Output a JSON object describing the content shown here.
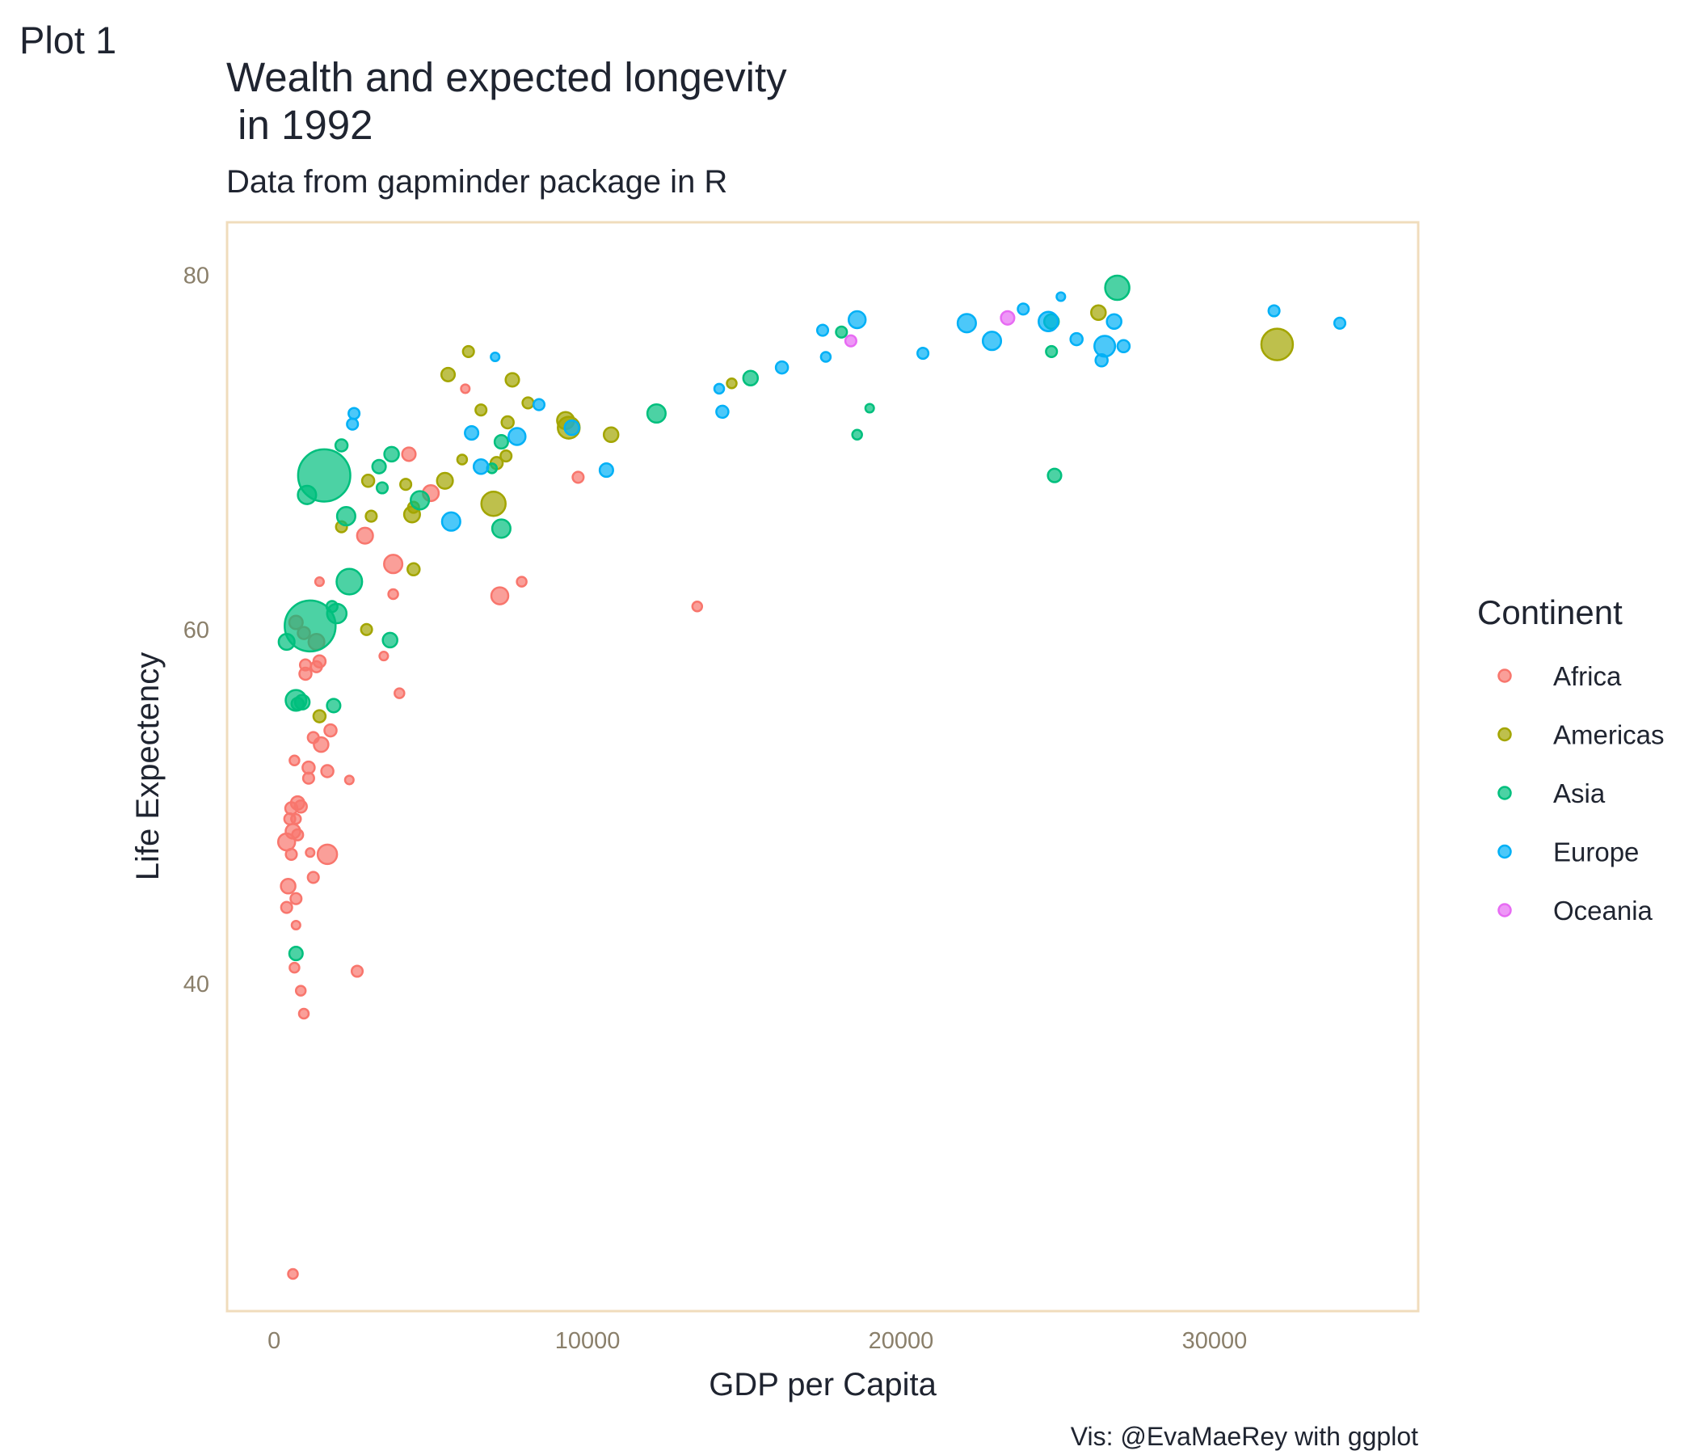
{
  "plot_tag": "Plot 1",
  "caption": "Vis: @EvaMaeRey with ggplot",
  "colors": {
    "Africa": "#F8766D",
    "Americas": "#A3A500",
    "Asia": "#00BF7D",
    "Europe": "#00B0F6",
    "Oceania": "#E76BF3",
    "panel_border": "#f0dcbc",
    "tick_text": "#8a7f6a"
  },
  "chart_data": {
    "type": "scatter",
    "title_lines": [
      "Wealth and expected longevity",
      " in 1992"
    ],
    "subtitle": "Data from gapminder package in R",
    "xlabel": "GDP per Capita",
    "ylabel": "Life Expectency",
    "xlim": [
      -1500,
      36500
    ],
    "ylim": [
      21.5,
      83
    ],
    "x_ticks": [
      0,
      10000,
      20000,
      30000
    ],
    "y_ticks": [
      40,
      60,
      80
    ],
    "grid": false,
    "legend": {
      "title": "Continent",
      "placement": "right",
      "entries": [
        "Africa",
        "Americas",
        "Asia",
        "Europe",
        "Oceania"
      ]
    },
    "series": [
      {
        "name": "Africa",
        "points": [
          {
            "x": 600,
            "y": 23.6,
            "s": 0.8
          },
          {
            "x": 950,
            "y": 38.3,
            "s": 0.8
          },
          {
            "x": 850,
            "y": 39.6,
            "s": 0.8
          },
          {
            "x": 2650,
            "y": 40.7,
            "s": 0.9
          },
          {
            "x": 650,
            "y": 40.9,
            "s": 0.8
          },
          {
            "x": 1250,
            "y": 46.0,
            "s": 0.9
          },
          {
            "x": 700,
            "y": 43.3,
            "s": 0.7
          },
          {
            "x": 400,
            "y": 44.3,
            "s": 0.9
          },
          {
            "x": 450,
            "y": 45.5,
            "s": 1.2
          },
          {
            "x": 700,
            "y": 44.8,
            "s": 0.9
          },
          {
            "x": 550,
            "y": 47.3,
            "s": 0.9
          },
          {
            "x": 400,
            "y": 48.0,
            "s": 1.4
          },
          {
            "x": 1700,
            "y": 47.3,
            "s": 1.6
          },
          {
            "x": 1150,
            "y": 47.4,
            "s": 0.7
          },
          {
            "x": 600,
            "y": 48.6,
            "s": 1.2
          },
          {
            "x": 750,
            "y": 48.4,
            "s": 0.9
          },
          {
            "x": 700,
            "y": 49.3,
            "s": 0.8
          },
          {
            "x": 500,
            "y": 49.3,
            "s": 0.9
          },
          {
            "x": 550,
            "y": 49.9,
            "s": 1.0
          },
          {
            "x": 850,
            "y": 50.0,
            "s": 1.0
          },
          {
            "x": 750,
            "y": 50.2,
            "s": 1.1
          },
          {
            "x": 1100,
            "y": 51.6,
            "s": 0.9
          },
          {
            "x": 2400,
            "y": 51.5,
            "s": 0.7
          },
          {
            "x": 1100,
            "y": 52.2,
            "s": 1.0
          },
          {
            "x": 1700,
            "y": 52.0,
            "s": 1.0
          },
          {
            "x": 650,
            "y": 52.6,
            "s": 0.8
          },
          {
            "x": 1500,
            "y": 53.5,
            "s": 1.2
          },
          {
            "x": 1250,
            "y": 53.9,
            "s": 0.9
          },
          {
            "x": 1800,
            "y": 54.3,
            "s": 1.0
          },
          {
            "x": 4000,
            "y": 56.4,
            "s": 0.8
          },
          {
            "x": 1000,
            "y": 57.5,
            "s": 1.0
          },
          {
            "x": 1000,
            "y": 58.0,
            "s": 0.9
          },
          {
            "x": 1350,
            "y": 57.9,
            "s": 0.9
          },
          {
            "x": 1450,
            "y": 58.2,
            "s": 1.0
          },
          {
            "x": 3500,
            "y": 58.5,
            "s": 0.7
          },
          {
            "x": 1350,
            "y": 59.3,
            "s": 1.3
          },
          {
            "x": 950,
            "y": 59.8,
            "s": 1.0
          },
          {
            "x": 700,
            "y": 60.4,
            "s": 1.1
          },
          {
            "x": 13500,
            "y": 61.3,
            "s": 0.8
          },
          {
            "x": 3800,
            "y": 62.0,
            "s": 0.8
          },
          {
            "x": 7200,
            "y": 61.9,
            "s": 1.4
          },
          {
            "x": 1450,
            "y": 62.7,
            "s": 0.7
          },
          {
            "x": 7900,
            "y": 62.7,
            "s": 0.8
          },
          {
            "x": 3800,
            "y": 63.7,
            "s": 1.5
          },
          {
            "x": 2900,
            "y": 65.3,
            "s": 1.3
          },
          {
            "x": 5000,
            "y": 67.7,
            "s": 1.3
          },
          {
            "x": 9700,
            "y": 68.6,
            "s": 0.9
          },
          {
            "x": 4300,
            "y": 69.9,
            "s": 1.1
          },
          {
            "x": 6100,
            "y": 73.6,
            "s": 0.7
          }
        ]
      },
      {
        "name": "Americas",
        "points": [
          {
            "x": 1450,
            "y": 55.1,
            "s": 1.0
          },
          {
            "x": 2950,
            "y": 60.0,
            "s": 0.9
          },
          {
            "x": 4450,
            "y": 63.4,
            "s": 1.0
          },
          {
            "x": 2150,
            "y": 65.8,
            "s": 0.9
          },
          {
            "x": 3100,
            "y": 66.4,
            "s": 0.9
          },
          {
            "x": 4400,
            "y": 66.5,
            "s": 1.3
          },
          {
            "x": 4450,
            "y": 66.9,
            "s": 0.9
          },
          {
            "x": 7000,
            "y": 67.1,
            "s": 2.0
          },
          {
            "x": 4200,
            "y": 68.2,
            "s": 0.9
          },
          {
            "x": 3000,
            "y": 68.4,
            "s": 1.0
          },
          {
            "x": 5450,
            "y": 68.4,
            "s": 1.3
          },
          {
            "x": 6000,
            "y": 69.6,
            "s": 0.8
          },
          {
            "x": 7100,
            "y": 69.4,
            "s": 1.0
          },
          {
            "x": 7400,
            "y": 69.8,
            "s": 0.9
          },
          {
            "x": 10750,
            "y": 71.0,
            "s": 1.2
          },
          {
            "x": 7450,
            "y": 71.7,
            "s": 1.0
          },
          {
            "x": 9300,
            "y": 71.8,
            "s": 1.4
          },
          {
            "x": 9400,
            "y": 71.4,
            "s": 1.8
          },
          {
            "x": 6600,
            "y": 72.4,
            "s": 0.9
          },
          {
            "x": 8100,
            "y": 72.8,
            "s": 0.9
          },
          {
            "x": 14600,
            "y": 73.9,
            "s": 0.8
          },
          {
            "x": 7600,
            "y": 74.1,
            "s": 1.1
          },
          {
            "x": 5550,
            "y": 74.4,
            "s": 1.1
          },
          {
            "x": 6200,
            "y": 75.7,
            "s": 0.9
          },
          {
            "x": 26300,
            "y": 77.9,
            "s": 1.2
          },
          {
            "x": 32000,
            "y": 76.1,
            "s": 2.6
          }
        ]
      },
      {
        "name": "Asia",
        "points": [
          {
            "x": 700,
            "y": 41.7,
            "s": 1.1
          },
          {
            "x": 750,
            "y": 55.8,
            "s": 1.0
          },
          {
            "x": 700,
            "y": 56.0,
            "s": 1.7
          },
          {
            "x": 900,
            "y": 55.9,
            "s": 1.2
          },
          {
            "x": 1900,
            "y": 55.7,
            "s": 1.1
          },
          {
            "x": 3700,
            "y": 59.4,
            "s": 1.2
          },
          {
            "x": 400,
            "y": 59.3,
            "s": 1.3
          },
          {
            "x": 1150,
            "y": 60.2,
            "s": 4.2
          },
          {
            "x": 1850,
            "y": 61.3,
            "s": 0.9
          },
          {
            "x": 2000,
            "y": 60.9,
            "s": 1.6
          },
          {
            "x": 2400,
            "y": 62.7,
            "s": 2.1
          },
          {
            "x": 7250,
            "y": 65.7,
            "s": 1.5
          },
          {
            "x": 2300,
            "y": 66.4,
            "s": 1.5
          },
          {
            "x": 4650,
            "y": 67.3,
            "s": 1.5
          },
          {
            "x": 1050,
            "y": 67.6,
            "s": 1.5
          },
          {
            "x": 1600,
            "y": 68.7,
            "s": 4.3
          },
          {
            "x": 3450,
            "y": 68.0,
            "s": 0.9
          },
          {
            "x": 24900,
            "y": 68.7,
            "s": 1.1
          },
          {
            "x": 3350,
            "y": 69.2,
            "s": 1.1
          },
          {
            "x": 6950,
            "y": 69.1,
            "s": 0.8
          },
          {
            "x": 3750,
            "y": 69.9,
            "s": 1.2
          },
          {
            "x": 2150,
            "y": 70.4,
            "s": 1.0
          },
          {
            "x": 7250,
            "y": 70.6,
            "s": 1.1
          },
          {
            "x": 18600,
            "y": 71.0,
            "s": 0.8
          },
          {
            "x": 12200,
            "y": 72.2,
            "s": 1.5
          },
          {
            "x": 19000,
            "y": 72.5,
            "s": 0.7
          },
          {
            "x": 15200,
            "y": 74.2,
            "s": 1.2
          },
          {
            "x": 24800,
            "y": 75.7,
            "s": 0.9
          },
          {
            "x": 18100,
            "y": 76.8,
            "s": 0.9
          },
          {
            "x": 24800,
            "y": 77.4,
            "s": 1.2
          },
          {
            "x": 26900,
            "y": 79.3,
            "s": 2.0
          }
        ]
      },
      {
        "name": "Europe",
        "points": [
          {
            "x": 5650,
            "y": 66.1,
            "s": 1.5
          },
          {
            "x": 10600,
            "y": 69.0,
            "s": 1.1
          },
          {
            "x": 6600,
            "y": 69.2,
            "s": 1.2
          },
          {
            "x": 7750,
            "y": 70.9,
            "s": 1.4
          },
          {
            "x": 6300,
            "y": 71.1,
            "s": 1.1
          },
          {
            "x": 2500,
            "y": 71.6,
            "s": 0.9
          },
          {
            "x": 9500,
            "y": 71.4,
            "s": 1.2
          },
          {
            "x": 2550,
            "y": 72.2,
            "s": 0.9
          },
          {
            "x": 8450,
            "y": 72.7,
            "s": 0.9
          },
          {
            "x": 14300,
            "y": 72.3,
            "s": 1.0
          },
          {
            "x": 14200,
            "y": 73.6,
            "s": 0.8
          },
          {
            "x": 16200,
            "y": 74.8,
            "s": 1.0
          },
          {
            "x": 17600,
            "y": 75.4,
            "s": 0.8
          },
          {
            "x": 7050,
            "y": 75.4,
            "s": 0.7
          },
          {
            "x": 20700,
            "y": 75.6,
            "s": 0.9
          },
          {
            "x": 22900,
            "y": 76.3,
            "s": 1.5
          },
          {
            "x": 25600,
            "y": 76.4,
            "s": 1.0
          },
          {
            "x": 26500,
            "y": 76.0,
            "s": 1.7
          },
          {
            "x": 27100,
            "y": 76.0,
            "s": 1.0
          },
          {
            "x": 26400,
            "y": 75.2,
            "s": 1.0
          },
          {
            "x": 17500,
            "y": 76.9,
            "s": 0.9
          },
          {
            "x": 22100,
            "y": 77.3,
            "s": 1.5
          },
          {
            "x": 18600,
            "y": 77.5,
            "s": 1.4
          },
          {
            "x": 24700,
            "y": 77.4,
            "s": 1.6
          },
          {
            "x": 26800,
            "y": 77.4,
            "s": 1.2
          },
          {
            "x": 23900,
            "y": 78.1,
            "s": 0.9
          },
          {
            "x": 25100,
            "y": 78.8,
            "s": 0.7
          },
          {
            "x": 31900,
            "y": 78.0,
            "s": 0.9
          },
          {
            "x": 34000,
            "y": 77.3,
            "s": 0.9
          }
        ]
      },
      {
        "name": "Oceania",
        "points": [
          {
            "x": 18400,
            "y": 76.3,
            "s": 0.9
          },
          {
            "x": 23400,
            "y": 77.6,
            "s": 1.1
          }
        ]
      }
    ]
  }
}
